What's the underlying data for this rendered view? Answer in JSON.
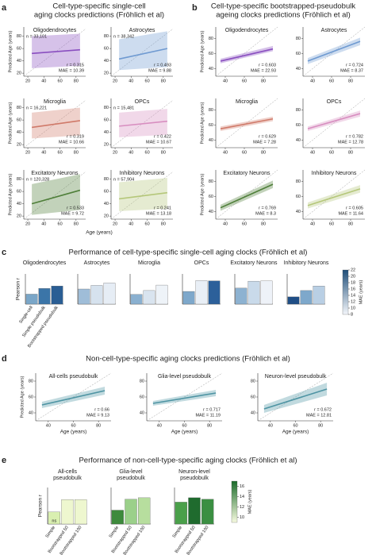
{
  "panels": [
    {
      "letter": "a",
      "title": [
        "Cell-type-specific single-cell",
        "aging clocks predictions (Fröhlich et al)"
      ],
      "xlabel": "Age (years)"
    },
    {
      "letter": "b",
      "title": [
        "Cell-type-specific bootstrapped-pseudobulk",
        "ageing clocks predictions (Fröhlich et al)"
      ]
    },
    {
      "letter": "c",
      "title": [
        "Performance of cell-type-specific single-cell aging clocks (Fröhlich et al)"
      ]
    },
    {
      "letter": "d",
      "title": [
        "Non-cell-type-specific aging clocks predictions (Fröhlich et al)"
      ]
    },
    {
      "letter": "e",
      "title": [
        "Performance of non-cell-type-specific aging clocks (Fröhlich et al)"
      ]
    }
  ],
  "colorbars": [
    {
      "label": "MAE (years)",
      "lim": [
        8,
        22
      ],
      "ticks": [
        8,
        10,
        12,
        14,
        16,
        18,
        20,
        22
      ],
      "colors": [
        "#f4f7fb",
        "#1f4e79"
      ]
    },
    {
      "label": "MAE (years)",
      "lim": [
        9,
        17
      ],
      "ticks": [
        10,
        12,
        14,
        16
      ],
      "colors": [
        "#f7fbe0",
        "#1a6b2a"
      ]
    }
  ],
  "chart_data": [
    {
      "type": "scatter",
      "title": "Oligodendrocytes",
      "ylabel": "Predicted Age (years)",
      "xlim": [
        15,
        92
      ],
      "ylim": [
        15,
        95
      ],
      "xticks": [
        20,
        40,
        60,
        80
      ],
      "yticks": [
        20,
        40,
        60,
        80
      ],
      "color": "#8a4fc0",
      "fit": {
        "x": [
          25,
          85
        ],
        "y": [
          52,
          58
        ]
      },
      "band": {
        "lower": [
          28,
          32
        ],
        "upper": [
          80,
          84
        ]
      },
      "note": "n = 33,101",
      "stats": [
        "r = 0.315",
        "MAE = 10.39"
      ]
    },
    {
      "type": "scatter",
      "title": "Astrocytes",
      "xlim": [
        15,
        92
      ],
      "ylim": [
        15,
        95
      ],
      "xticks": [
        20,
        40,
        60,
        80
      ],
      "yticks": [
        20,
        40,
        60,
        80
      ],
      "color": "#6f9ad1",
      "fit": {
        "x": [
          25,
          85
        ],
        "y": [
          43,
          60
        ]
      },
      "band": {
        "lower": [
          25,
          30
        ],
        "upper": [
          75,
          88
        ]
      },
      "note": "n = 38,342",
      "stats": [
        "r = 0.493",
        "MAE = 9.88"
      ]
    },
    {
      "type": "scatter",
      "title": "Microglia",
      "ylabel": "Predicted Age (years)",
      "xlim": [
        15,
        92
      ],
      "ylim": [
        15,
        95
      ],
      "xticks": [
        20,
        40,
        60,
        80
      ],
      "yticks": [
        20,
        40,
        60,
        80
      ],
      "color": "#d07a6a",
      "fit": {
        "x": [
          25,
          85
        ],
        "y": [
          48,
          59
        ]
      },
      "band": {
        "lower": [
          30,
          35
        ],
        "upper": [
          72,
          80
        ]
      },
      "note": "n = 16,221",
      "stats": [
        "r = 0.319",
        "MAE = 10.66"
      ]
    },
    {
      "type": "scatter",
      "title": "OPCs",
      "xlim": [
        15,
        92
      ],
      "ylim": [
        15,
        95
      ],
      "xticks": [
        20,
        40,
        60,
        80
      ],
      "yticks": [
        20,
        40,
        60,
        80
      ],
      "color": "#d88ec0",
      "fit": {
        "x": [
          25,
          85
        ],
        "y": [
          50,
          58
        ]
      },
      "band": {
        "lower": [
          32,
          36
        ],
        "upper": [
          72,
          78
        ]
      },
      "note": "n = 15,481",
      "stats": [
        "r = 0.422",
        "MAE = 10.67"
      ]
    },
    {
      "type": "scatter",
      "title": "Excitatory Neurons",
      "ylabel": "Predicted Age (years)",
      "xlim": [
        15,
        92
      ],
      "ylim": [
        15,
        95
      ],
      "xticks": [
        20,
        40,
        60,
        80
      ],
      "yticks": [
        20,
        40,
        60,
        80
      ],
      "color": "#4f7f3a",
      "fit": {
        "x": [
          25,
          85
        ],
        "y": [
          40,
          62
        ]
      },
      "band": {
        "lower": [
          22,
          30
        ],
        "upper": [
          72,
          88
        ]
      },
      "note": "n = 120,328",
      "stats": [
        "r = 0.533",
        "MAE = 9.72"
      ]
    },
    {
      "type": "scatter",
      "title": "Inhibitory Neurons",
      "xlim": [
        15,
        92
      ],
      "ylim": [
        15,
        95
      ],
      "xticks": [
        20,
        40,
        60,
        80
      ],
      "yticks": [
        20,
        40,
        60,
        80
      ],
      "color": "#b5c77a",
      "fit": {
        "x": [
          25,
          85
        ],
        "y": [
          48,
          58
        ]
      },
      "band": {
        "lower": [
          28,
          32
        ],
        "upper": [
          75,
          82
        ]
      },
      "note": "n = 57,904",
      "stats": [
        "r = 0.241",
        "MAE = 13.18"
      ]
    },
    {
      "type": "scatter",
      "title": "Oligodendrocytes",
      "ylabel": "Predicted Age (years)",
      "xlim": [
        30,
        95
      ],
      "ylim": [
        30,
        95
      ],
      "xticks": [
        40,
        60,
        80
      ],
      "yticks": [
        40,
        60,
        80
      ],
      "color": "#8a4fc0",
      "fit": {
        "x": [
          35,
          90
        ],
        "y": [
          50,
          66
        ]
      },
      "band": {
        "lower": [
          47,
          63
        ],
        "upper": [
          53,
          70
        ]
      },
      "stats": [
        "r = 0.603",
        "MAE = 22.93"
      ]
    },
    {
      "type": "scatter",
      "title": "Astrocytes",
      "xlim": [
        30,
        95
      ],
      "ylim": [
        30,
        95
      ],
      "xticks": [
        40,
        60,
        80
      ],
      "yticks": [
        40,
        60,
        80
      ],
      "color": "#6f9ad1",
      "fit": {
        "x": [
          35,
          90
        ],
        "y": [
          50,
          76
        ]
      },
      "band": {
        "lower": [
          46,
          71
        ],
        "upper": [
          54,
          81
        ]
      },
      "stats": [
        "r = 0.724",
        "MAE = 8.37"
      ]
    },
    {
      "type": "scatter",
      "title": "Microglia",
      "ylabel": "Predicted Age (years)",
      "xlim": [
        30,
        95
      ],
      "ylim": [
        30,
        95
      ],
      "xticks": [
        40,
        60,
        80
      ],
      "yticks": [
        40,
        60,
        80
      ],
      "color": "#d07a6a",
      "fit": {
        "x": [
          35,
          90
        ],
        "y": [
          55,
          68
        ]
      },
      "band": {
        "lower": [
          52,
          65
        ],
        "upper": [
          58,
          71
        ]
      },
      "stats": [
        "r = 0.629",
        "MAE = 7.28"
      ]
    },
    {
      "type": "scatter",
      "title": "OPCs",
      "xlim": [
        30,
        95
      ],
      "ylim": [
        30,
        95
      ],
      "xticks": [
        40,
        60,
        80
      ],
      "yticks": [
        40,
        60,
        80
      ],
      "color": "#d88ec0",
      "fit": {
        "x": [
          35,
          90
        ],
        "y": [
          55,
          75
        ]
      },
      "band": {
        "lower": [
          52,
          71
        ],
        "upper": [
          58,
          79
        ]
      },
      "stats": [
        "r = 0.782",
        "MAE = 12.78"
      ]
    },
    {
      "type": "scatter",
      "title": "Excitatory Neurons",
      "ylabel": "Predicted Age (years)",
      "xlim": [
        30,
        95
      ],
      "ylim": [
        30,
        95
      ],
      "xticks": [
        40,
        60,
        80
      ],
      "yticks": [
        40,
        60,
        80
      ],
      "color": "#4f7f3a",
      "fit": {
        "x": [
          35,
          90
        ],
        "y": [
          45,
          76
        ]
      },
      "band": {
        "lower": [
          41,
          71
        ],
        "upper": [
          49,
          81
        ]
      },
      "stats": [
        "r = 0.769",
        "MAE = 8.3"
      ]
    },
    {
      "type": "scatter",
      "title": "Inhibitory Neurons",
      "xlim": [
        30,
        95
      ],
      "ylim": [
        30,
        95
      ],
      "xticks": [
        40,
        60,
        80
      ],
      "yticks": [
        40,
        60,
        80
      ],
      "color": "#b5c77a",
      "fit": {
        "x": [
          35,
          90
        ],
        "y": [
          48,
          70
        ]
      },
      "band": {
        "lower": [
          44,
          65
        ],
        "upper": [
          52,
          75
        ]
      },
      "stats": [
        "r = 0.605",
        "MAE = 11.64"
      ]
    },
    {
      "type": "bar",
      "title": "Oligodendrocytes",
      "ylabel": "Pearson r",
      "categories": [
        "Single-cell",
        "Simple pseudobulk",
        "Bootstrapped pseudobulk"
      ],
      "ylim": [
        0,
        1
      ],
      "values": [
        0.33,
        0.52,
        0.6
      ],
      "colors": [
        "#7aa6c8",
        "#3b75a8",
        "#2a5e94"
      ]
    },
    {
      "type": "bar",
      "title": "Astrocytes",
      "ylim": [
        0,
        1
      ],
      "values": [
        0.5,
        0.62,
        0.7
      ],
      "colors": [
        "#9fbdd8",
        "#d6e2ee",
        "#e6edf5"
      ]
    },
    {
      "type": "bar",
      "title": "Microglia",
      "ylim": [
        0,
        1
      ],
      "values": [
        0.32,
        0.45,
        0.63
      ],
      "colors": [
        "#8ab0d0",
        "#d9e4ef",
        "#eef3f8"
      ]
    },
    {
      "type": "bar",
      "title": "OPCs",
      "ylim": [
        0,
        1
      ],
      "values": [
        0.42,
        0.78,
        0.77
      ],
      "colors": [
        "#7ea8cb",
        "#e9eff6",
        "#2c609a"
      ]
    },
    {
      "type": "bar",
      "title": "Excitatory Neurons",
      "ylim": [
        0,
        1
      ],
      "values": [
        0.53,
        0.76,
        0.77
      ],
      "colors": [
        "#8db2d1",
        "#c9daea",
        "#eef2f8"
      ]
    },
    {
      "type": "bar",
      "title": "Inhibitory Neurons",
      "ylim": [
        0,
        1
      ],
      "values": [
        0.24,
        0.45,
        0.6
      ],
      "colors": [
        "#1f4e86",
        "#7ea8cb",
        "#b9cfe4"
      ]
    },
    {
      "type": "scatter",
      "title": "All-cells pseudobulk",
      "ylabel": "Predicted Age (years)",
      "xlabel": "Age (years)",
      "xlim": [
        30,
        90
      ],
      "ylim": [
        30,
        90
      ],
      "xticks": [
        40,
        60,
        80
      ],
      "yticks": [
        40,
        60,
        80
      ],
      "color": "#4e94a3",
      "fit": {
        "x": [
          35,
          85
        ],
        "y": [
          50,
          68
        ]
      },
      "band": {
        "lower": [
          46,
          63
        ],
        "upper": [
          54,
          73
        ]
      },
      "stats": [
        "r = 0.66",
        "MAE = 9.13"
      ]
    },
    {
      "type": "scatter",
      "title": "Glia-level pseudobulk",
      "xlabel": "Age (years)",
      "xlim": [
        30,
        90
      ],
      "ylim": [
        30,
        90
      ],
      "xticks": [
        40,
        60,
        80
      ],
      "yticks": [
        40,
        60,
        80
      ],
      "color": "#4e94a3",
      "fit": {
        "x": [
          35,
          85
        ],
        "y": [
          52,
          65
        ]
      },
      "band": {
        "lower": [
          49,
          61
        ],
        "upper": [
          55,
          69
        ]
      },
      "stats": [
        "r = 0.717",
        "MAE = 11.19"
      ]
    },
    {
      "type": "scatter",
      "title": "Neuron-level pseudobulk",
      "xlabel": "Age (years)",
      "xlim": [
        30,
        90
      ],
      "ylim": [
        30,
        90
      ],
      "xticks": [
        40,
        60,
        80
      ],
      "yticks": [
        40,
        60,
        80
      ],
      "color": "#4e94a3",
      "fit": {
        "x": [
          35,
          85
        ],
        "y": [
          45,
          70
        ]
      },
      "band": {
        "lower": [
          40,
          62
        ],
        "upper": [
          50,
          78
        ]
      },
      "stats": [
        "r = 0.672",
        "MAE = 12.81"
      ]
    },
    {
      "type": "bar",
      "title": [
        "All-cells",
        "pseudobulk"
      ],
      "ylabel": "Pearson r",
      "categories": [
        "Simple",
        "Bootstrapped 50",
        "Bootstrapped 100"
      ],
      "ylim": [
        0,
        1
      ],
      "values": [
        0.33,
        0.67,
        0.67
      ],
      "bar_notes": [
        "ns",
        null,
        null
      ],
      "colors": [
        "#d9efb0",
        "#eef7cf",
        "#eef7cf"
      ]
    },
    {
      "type": "bar",
      "title": [
        "Glia-level",
        "pseudobulk"
      ],
      "categories": [
        "Simple",
        "Bootstrapped 50",
        "Bootstrapped 100"
      ],
      "ylim": [
        0,
        1
      ],
      "values": [
        0.38,
        0.68,
        0.72
      ],
      "colors": [
        "#3d8a3c",
        "#9bd08a",
        "#b7de9e"
      ]
    },
    {
      "type": "bar",
      "title": [
        "Neuron-level",
        "pseudobulk"
      ],
      "categories": [
        "Simple",
        "Bootstrapped 50",
        "Bootstrapped 100"
      ],
      "ylim": [
        0,
        1
      ],
      "values": [
        0.6,
        0.72,
        0.68
      ],
      "colors": [
        "#4aa04a",
        "#1f6b2e",
        "#3b8f42"
      ]
    }
  ]
}
